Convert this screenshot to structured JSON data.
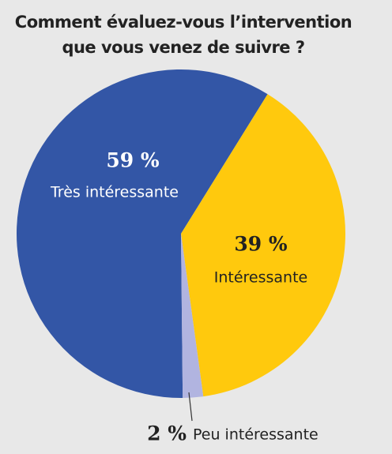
{
  "chart_data": {
    "type": "pie",
    "title": [
      "Comment évaluez-vous l’intervention",
      "que vous venez de suivre ?"
    ],
    "categories": [
      "Très intéressante",
      "Intéressante",
      "Peu intéressante"
    ],
    "values": [
      59,
      39,
      2
    ],
    "value_labels": [
      "59 %",
      "39 %",
      "2 %"
    ],
    "colors": [
      "#3356a6",
      "#ffc90d",
      "#b1b4e0"
    ]
  }
}
